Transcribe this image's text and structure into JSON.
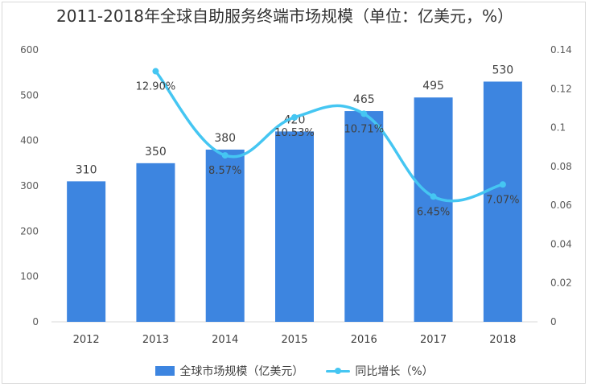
{
  "chart_data": {
    "type": "bar",
    "title": "2011-2018年全球自助服务终端市场规模（单位：亿美元，%）",
    "categories": [
      "2012",
      "2013",
      "2014",
      "2015",
      "2016",
      "2017",
      "2018"
    ],
    "bar_series": {
      "name": "全球市场规模（亿美元）",
      "values": [
        310,
        350,
        380,
        420,
        465,
        495,
        530
      ],
      "labels": [
        "310",
        "350",
        "380",
        "420",
        "465",
        "495",
        "530"
      ],
      "color": "#3d85e0"
    },
    "line_series": {
      "name": "同比增长（%）",
      "values": [
        null,
        0.129,
        0.0857,
        0.1053,
        0.1071,
        0.0645,
        0.0707
      ],
      "labels": [
        "",
        "12.90%",
        "8.57%",
        "10.53%",
        "10.71%",
        "6.45%",
        "7.07%"
      ],
      "color": "#45c6f2"
    },
    "y_left": {
      "ylim": [
        0,
        600
      ],
      "ticks": [
        0,
        100,
        200,
        300,
        400,
        500,
        600
      ],
      "tick_labels": [
        "0",
        "100",
        "200",
        "300",
        "400",
        "500",
        "600"
      ]
    },
    "y_right": {
      "ylim": [
        0,
        0.14
      ],
      "ticks": [
        0,
        0.02,
        0.04,
        0.06,
        0.08,
        0.1,
        0.12,
        0.14
      ],
      "tick_labels": [
        "0",
        "0.02",
        "0.04",
        "0.06",
        "0.08",
        "0.1",
        "0.12",
        "0.14"
      ]
    },
    "grid": false,
    "legend_position": "bottom"
  }
}
